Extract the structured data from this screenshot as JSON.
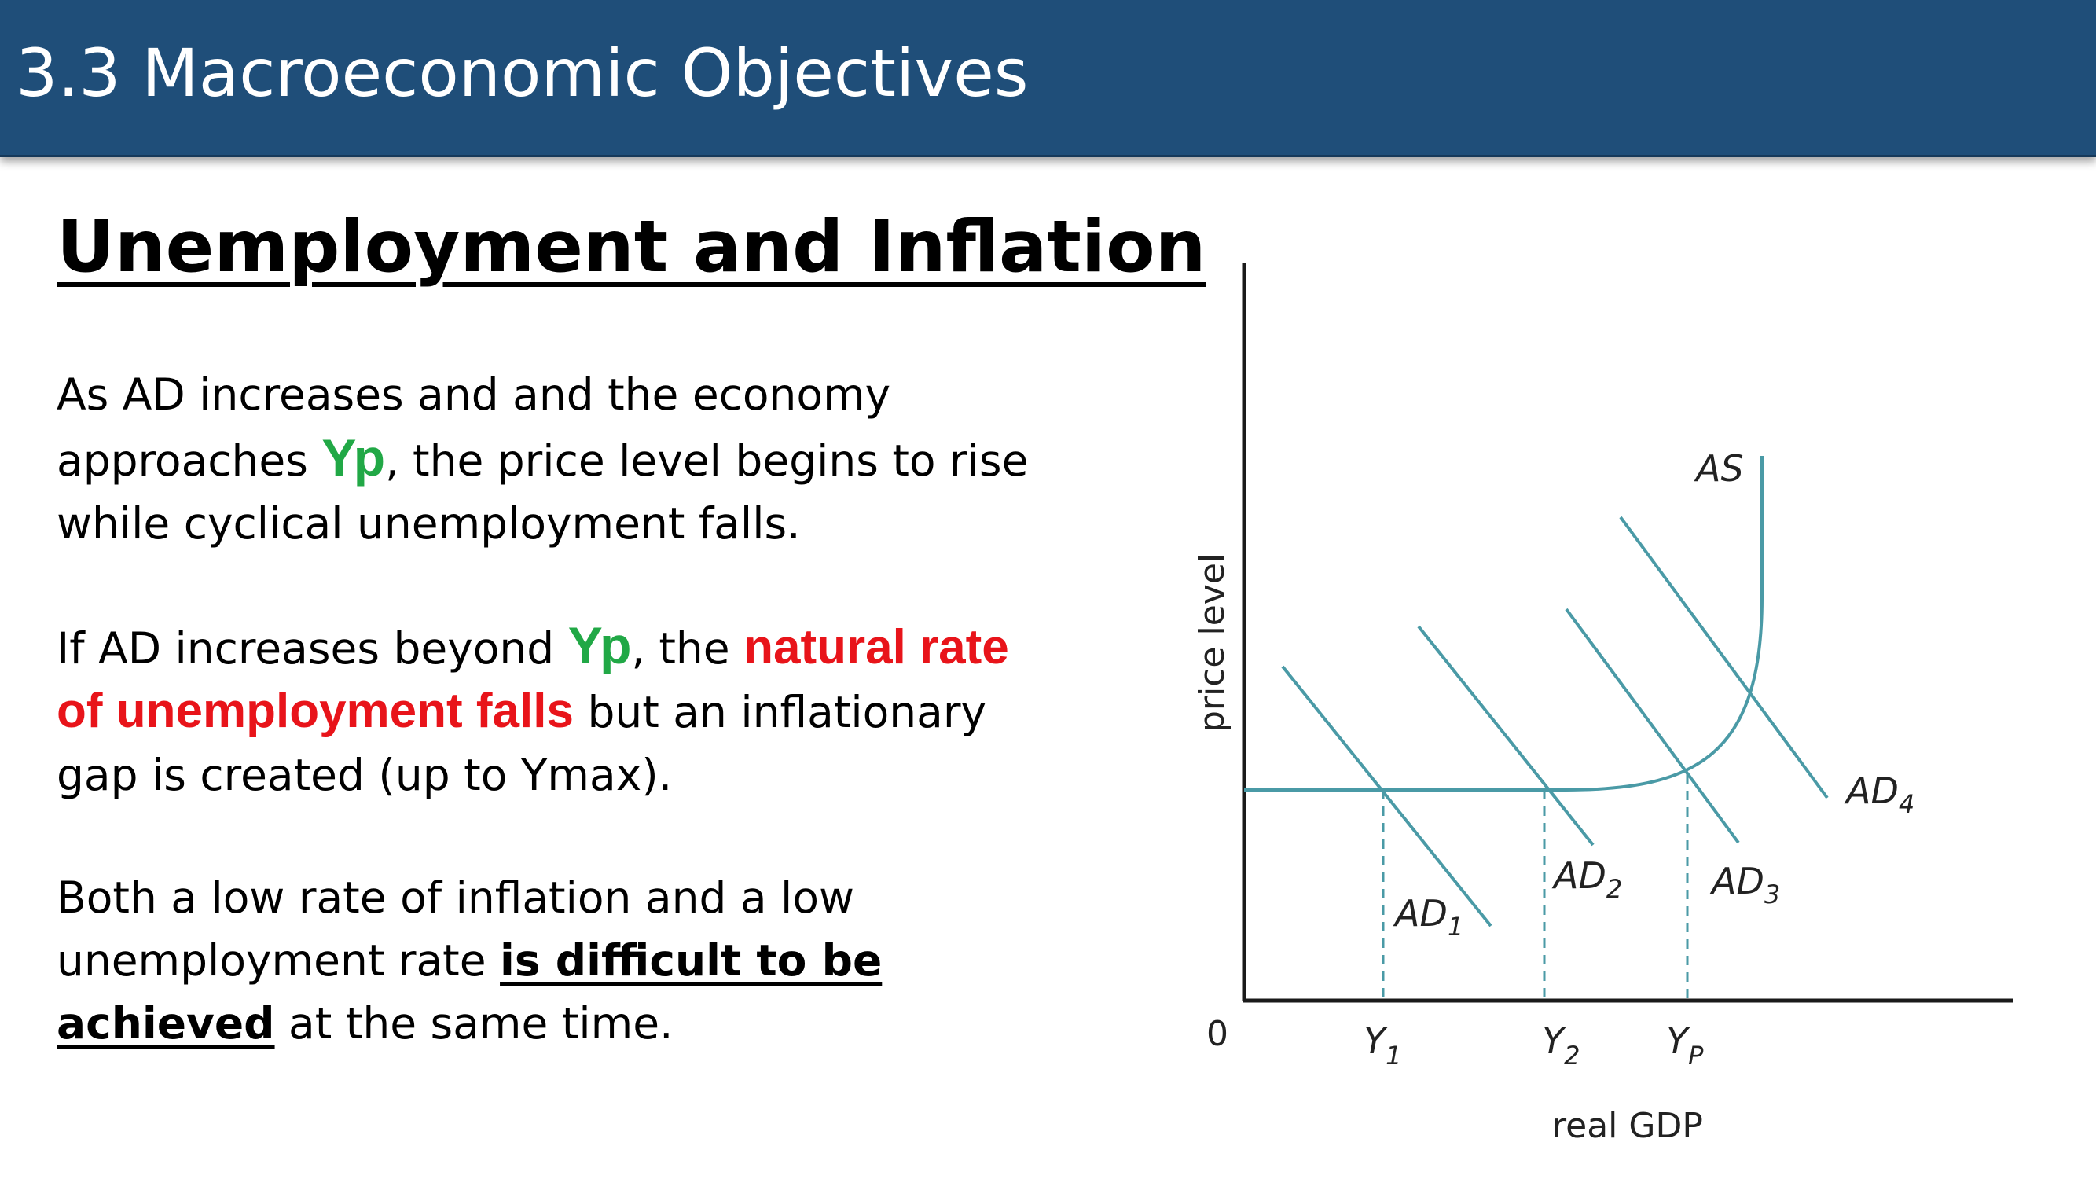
{
  "header": {
    "title": "3.3 Macroeconomic Objectives"
  },
  "section": {
    "title": "Unemployment and Inflation"
  },
  "text": {
    "p1": {
      "a": "As AD increases and and the economy",
      "b": "approaches ",
      "b_hl": "Yp",
      "b_end": ", the price level begins to rise",
      "c": "while cyclical unemployment falls."
    },
    "p2": {
      "a": "If AD increases beyond ",
      "a_hl": "Yp",
      "a_mid": ", the ",
      "a_red": "natural rate",
      "b_red": "of unemployment falls",
      "b_end": " but an inflationary",
      "c": "gap is created (up to Ymax)."
    },
    "p3": {
      "a": "Both a low rate of inflation and a low",
      "b": "unemployment rate ",
      "b_ul": "is difficult to be",
      "c_ul": "achieved",
      "c_end": " at the same time."
    }
  },
  "diagram": {
    "y_axis_label": "price level",
    "x_axis_label": "real GDP",
    "origin_label": "0",
    "as_label": "AS",
    "ad_curves": [
      {
        "main": "AD",
        "sub": "1"
      },
      {
        "main": "AD",
        "sub": "2"
      },
      {
        "main": "AD",
        "sub": "3"
      },
      {
        "main": "AD",
        "sub": "4"
      }
    ],
    "x_ticks": [
      {
        "main": "Y",
        "sub": "1"
      },
      {
        "main": "Y",
        "sub": "2"
      },
      {
        "main": "Y",
        "sub": "P"
      }
    ],
    "colors": {
      "curve": "#4a9aa6",
      "axis": "#1a1a1a",
      "text_green": "#21a846",
      "text_red": "#e8141a",
      "header": "#1f4e79"
    }
  }
}
